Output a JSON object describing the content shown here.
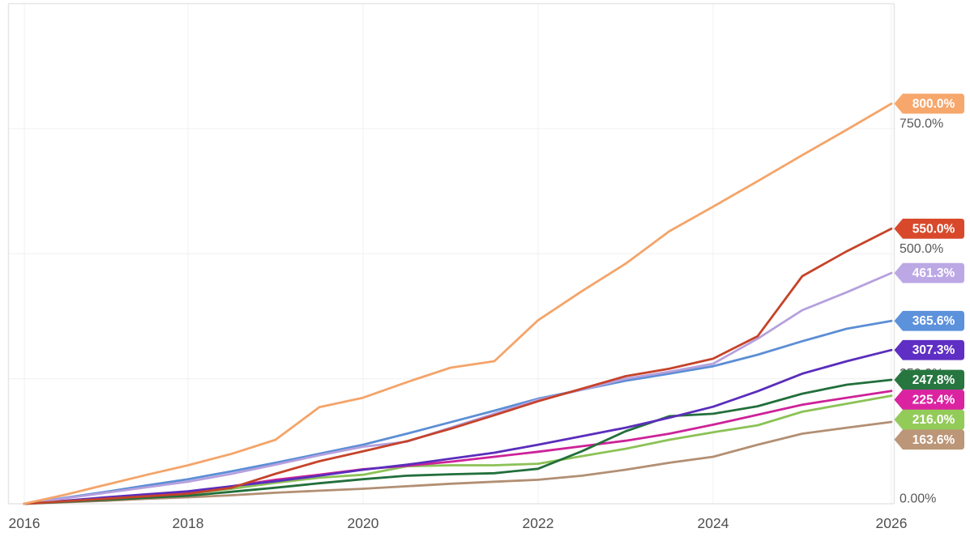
{
  "chart_data": {
    "type": "line",
    "title": "",
    "xlabel": "",
    "ylabel": "",
    "grid": true,
    "legend_position": "right-pointer-tags",
    "xlim": [
      2016,
      2026
    ],
    "ylim": [
      0,
      1000
    ],
    "x": [
      2016,
      2016.5,
      2017,
      2017.5,
      2018,
      2018.5,
      2019,
      2019.5,
      2020,
      2020.5,
      2021,
      2021.5,
      2022,
      2022.5,
      2023,
      2023.5,
      2024,
      2024.5,
      2025,
      2025.5,
      2026
    ],
    "x_axis": {
      "ticks": [
        {
          "value": 2016,
          "label": "2016"
        },
        {
          "value": 2018,
          "label": "2018"
        },
        {
          "value": 2020,
          "label": "2020"
        },
        {
          "value": 2022,
          "label": "2022"
        },
        {
          "value": 2024,
          "label": "2024"
        },
        {
          "value": 2026,
          "label": "2026"
        }
      ]
    },
    "y_axis": {
      "unit": "%",
      "ticks": [
        {
          "value": 750,
          "label": "750.0%"
        },
        {
          "value": 500,
          "label": "500.0%"
        },
        {
          "value": 250,
          "label": "250.0%"
        },
        {
          "value": 0,
          "label": "0.00%"
        }
      ]
    },
    "series": [
      {
        "name": "orange",
        "final_label": "800.0%",
        "final_value": 800.0,
        "color": "#F4A469",
        "tag_color": "#F7A76C",
        "values": [
          0,
          18,
          38,
          58,
          77,
          100,
          128,
          193,
          212,
          243,
          272,
          285,
          367,
          425,
          480,
          545,
          594,
          645,
          697,
          748,
          800
        ]
      },
      {
        "name": "red",
        "final_label": "550.0%",
        "final_value": 550.0,
        "color": "#C5432A",
        "tag_color": "#D8492B",
        "values": [
          0,
          5,
          10,
          15,
          20,
          32,
          60,
          85,
          105,
          125,
          150,
          177,
          205,
          230,
          255,
          270,
          290,
          335,
          455,
          505,
          550
        ]
      },
      {
        "name": "light-purple",
        "final_label": "461.3%",
        "final_value": 461.3,
        "color": "#B5A0DE",
        "tag_color": "#BCA8E5",
        "values": [
          0,
          11,
          22,
          33,
          44,
          60,
          78,
          97,
          114,
          124,
          152,
          180,
          208,
          228,
          250,
          264,
          280,
          330,
          387,
          423,
          461.3
        ]
      },
      {
        "name": "blue",
        "final_label": "365.6%",
        "final_value": 365.6,
        "color": "#5C8ED5",
        "tag_color": "#5C91DC",
        "values": [
          0,
          12,
          24,
          37,
          49,
          65,
          82,
          100,
          118,
          140,
          163,
          186,
          210,
          228,
          246,
          260,
          275,
          298,
          325,
          350,
          365.6
        ]
      },
      {
        "name": "violet",
        "final_label": "307.3%",
        "final_value": 307.3,
        "color": "#5A2DBC",
        "tag_color": "#5F2EC4",
        "values": [
          0,
          6,
          13,
          19,
          25,
          35,
          45,
          56,
          68,
          78,
          90,
          102,
          118,
          135,
          152,
          172,
          194,
          225,
          260,
          285,
          307.3
        ]
      },
      {
        "name": "dark-green",
        "final_label": "247.8%",
        "final_value": 247.8,
        "color": "#226F3C",
        "tag_color": "#27763F",
        "values": [
          0,
          4,
          8,
          12,
          16,
          24,
          32,
          41,
          49,
          56,
          59,
          61,
          70,
          105,
          145,
          175,
          180,
          195,
          220,
          238,
          247.8
        ]
      },
      {
        "name": "magenta",
        "final_label": "225.4%",
        "final_value": 225.4,
        "color": "#CD2298",
        "tag_color": "#DB23A2",
        "values": [
          0,
          5.5,
          11,
          16,
          22,
          35,
          48,
          58,
          69,
          76,
          84,
          94,
          104,
          115,
          126,
          140,
          158,
          178,
          198,
          212,
          225.4
        ]
      },
      {
        "name": "light-green",
        "final_label": "216.0%",
        "final_value": 216.0,
        "color": "#8BC256",
        "tag_color": "#93CB59",
        "values": [
          0,
          5,
          10,
          15,
          20,
          30,
          42,
          52,
          58,
          75,
          77,
          77,
          80,
          95,
          110,
          128,
          143,
          157,
          184,
          200,
          216
        ]
      },
      {
        "name": "brown",
        "final_label": "163.6%",
        "final_value": 163.6,
        "color": "#B28F73",
        "tag_color": "#BB9678",
        "values": [
          0,
          3,
          6,
          10,
          13,
          17,
          22,
          26,
          30,
          35,
          40,
          44,
          48,
          56,
          68,
          82,
          94,
          118,
          140,
          152,
          163.6
        ]
      }
    ],
    "colors": {
      "grid": "#F0F0F0",
      "border": "#E6E6E6",
      "y_tick_text": "#58585A",
      "x_tick_text": "#4F4F4F",
      "tag_text": "#FFFFFF",
      "background": "#FFFFFF"
    }
  }
}
